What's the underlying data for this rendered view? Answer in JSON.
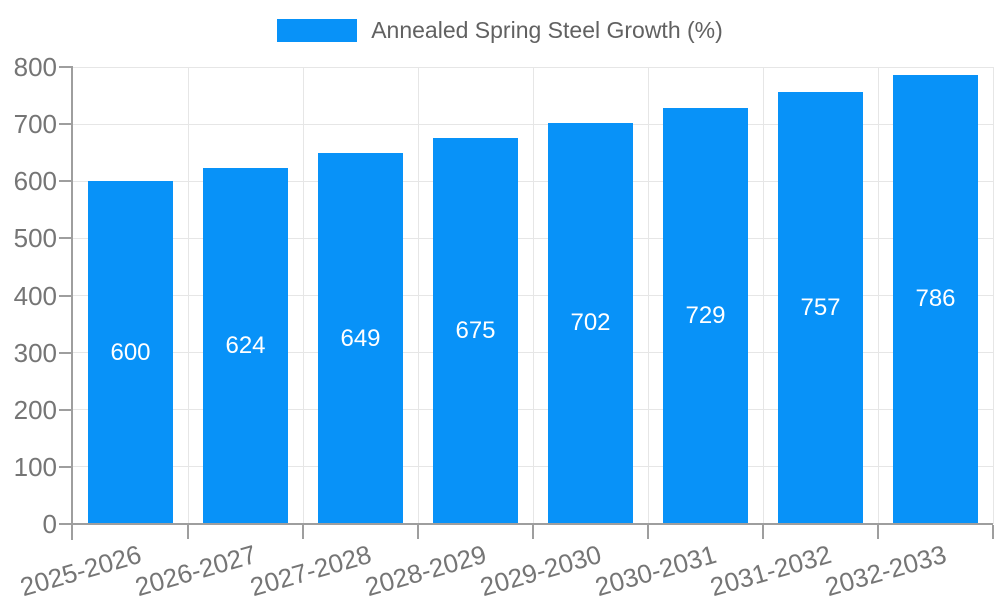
{
  "chart_data": {
    "type": "bar",
    "title": "",
    "legend": {
      "label": "Annealed Spring Steel Growth (%)",
      "position": "top"
    },
    "categories": [
      "2025-2026",
      "2026-2027",
      "2027-2028",
      "2028-2029",
      "2029-2030",
      "2030-2031",
      "2031-2032",
      "2032-2033"
    ],
    "series": [
      {
        "name": "Annealed Spring Steel Growth (%)",
        "values": [
          600,
          624,
          649,
          675,
          702,
          729,
          757,
          786
        ],
        "color": "#0892f8"
      }
    ],
    "value_labels": {
      "position": "inside-center",
      "color": "#ffffff"
    },
    "xlabel": "",
    "ylabel": "",
    "ylim": [
      0,
      800
    ],
    "yticks": [
      0,
      100,
      200,
      300,
      400,
      500,
      600,
      700,
      800
    ],
    "grid": true,
    "x_label_rotation_deg": -16
  },
  "colors": {
    "bar": "#0892f8",
    "grid_line": "#e6e6e6",
    "axis_line": "#9e9e9e",
    "tick_text": "#757575",
    "legend_text": "#616161",
    "value_text": "#ffffff",
    "background": "#ffffff"
  }
}
